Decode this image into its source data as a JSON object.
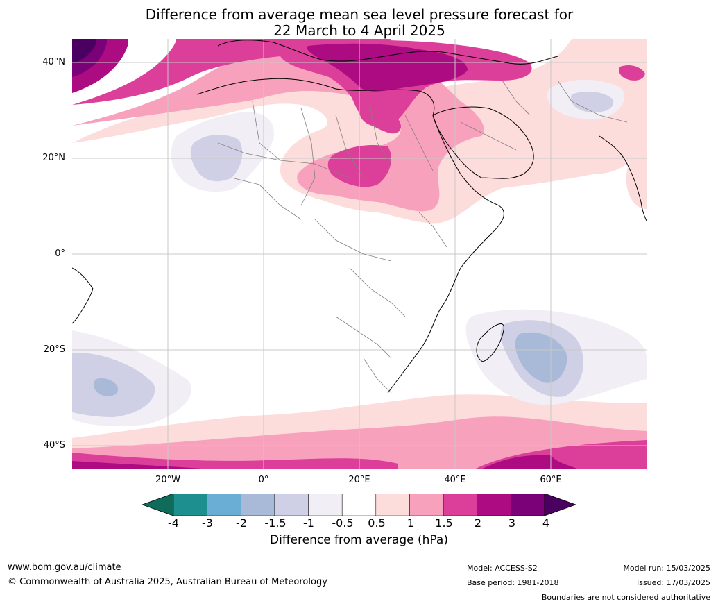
{
  "title": {
    "line1": "Difference from average mean sea level pressure forecast for",
    "line2": "22 March to 4 April 2025"
  },
  "axes": {
    "lat_labels": [
      "40°N",
      "20°N",
      "0°",
      "20°S",
      "40°S"
    ],
    "lon_labels": [
      "20°W",
      "0°",
      "20°E",
      "40°E",
      "60°E"
    ]
  },
  "colorbar": {
    "ticks": [
      "-4",
      "-3",
      "-2",
      "-1.5",
      "-1",
      "-0.5",
      "0.5",
      "1",
      "1.5",
      "2",
      "3",
      "4"
    ],
    "colors": [
      "#0f6b5a",
      "#1e8f8f",
      "#6aaed6",
      "#a9bad8",
      "#cfd0e6",
      "#f2eef5",
      "#ffffff",
      "#fddcdc",
      "#f7a1bd",
      "#dc3f99",
      "#ad0b82",
      "#7a0177",
      "#4a0060"
    ],
    "label": "Difference from average (hPa)"
  },
  "footer": {
    "website": "www.bom.gov.au/climate",
    "copyright": "© Commonwealth of Australia 2025, Australian Bureau of Meteorology",
    "model": "Model: ACCESS-S2",
    "base_period": "Base period: 1981-2018",
    "model_run": "Model run: 15/03/2025",
    "issued": "Issued: 17/03/2025",
    "disclaimer": "Boundaries are not considered authoritative"
  }
}
